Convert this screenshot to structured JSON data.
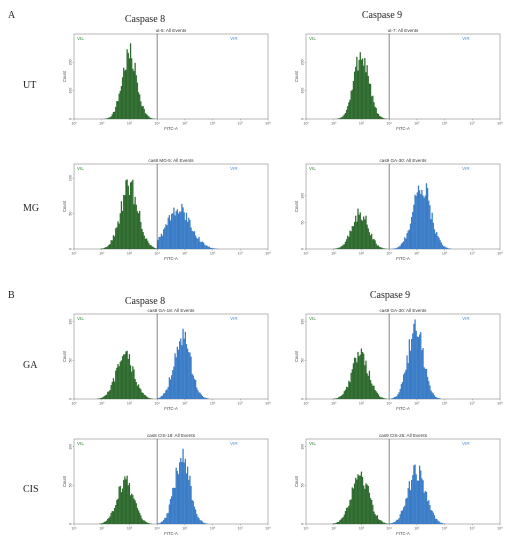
{
  "figure": {
    "sections": [
      {
        "letter": "A",
        "column_titles": [
          "Caspase 8",
          "Caspase 9"
        ],
        "rows": [
          "UT",
          "MG"
        ]
      },
      {
        "letter": "B",
        "column_titles": [
          "Caspase 8",
          "Caspase 9"
        ],
        "rows": [
          "GA",
          "CIS"
        ]
      }
    ]
  },
  "colors": {
    "green": "#2e6b2e",
    "blue": "#3a7cc7",
    "gate_label_green": "#2e8b2e",
    "gate_label_blue": "#4a90d9",
    "axis": "#555555"
  },
  "chart_data": [
    {
      "type": "area",
      "title": "ut-5: All Events",
      "xlabel": "FITC-A",
      "ylabel": "Count",
      "x_scale": "log",
      "xlim": [
        10,
        100000000
      ],
      "x_ticks": [
        "10¹",
        "10²",
        "10³",
        "10⁴",
        "10⁵",
        "10⁶",
        "10⁷",
        "10⁸"
      ],
      "ylim": [
        0,
        300
      ],
      "y_ticks": [
        0,
        100,
        200
      ],
      "gate_x": 10000,
      "gate_labels": [
        "VIL",
        "VIR"
      ],
      "series": [
        {
          "gate": "VIL",
          "peak_x": 1000,
          "peak_y": 225,
          "width": 0.27
        }
      ]
    },
    {
      "type": "area",
      "title": "ut-7: All Events",
      "xlabel": "FITC-A",
      "ylabel": "Count",
      "x_scale": "log",
      "xlim": [
        10,
        100000000
      ],
      "x_ticks": [
        "10¹",
        "10²",
        "10³",
        "10⁴",
        "10⁵",
        "10⁶",
        "10⁷",
        "10⁸"
      ],
      "ylim": [
        0,
        300
      ],
      "y_ticks": [
        0,
        100,
        200
      ],
      "gate_x": 10000,
      "gate_labels": [
        "VIL",
        "VIR"
      ],
      "series": [
        {
          "gate": "VIL",
          "peak_x": 1000,
          "peak_y": 230,
          "width": 0.27
        }
      ]
    },
    {
      "type": "area",
      "title": "cas8 MG-5: All Events",
      "xlabel": "FITC-A",
      "ylabel": "Count",
      "x_scale": "log",
      "xlim": [
        10,
        100000000
      ],
      "x_ticks": [
        "10¹",
        "10²",
        "10³",
        "10⁴",
        "10⁵",
        "10⁶",
        "10⁷",
        "10⁸"
      ],
      "ylim": [
        0,
        120
      ],
      "y_ticks": [
        0,
        50,
        100
      ],
      "gate_x": 10000,
      "gate_labels": [
        "VIL",
        "VIR"
      ],
      "series": [
        {
          "gate": "VIL",
          "peak_x": 1000,
          "peak_y": 88,
          "width": 0.32
        },
        {
          "gate": "VIR",
          "peak_x": 60000,
          "peak_y": 55,
          "width": 0.45
        }
      ]
    },
    {
      "type": "area",
      "title": "cas9 GA-30: All Events",
      "xlabel": "FITC-A",
      "ylabel": "Count",
      "x_scale": "log",
      "xlim": [
        10,
        100000000
      ],
      "x_ticks": [
        "10¹",
        "10²",
        "10³",
        "10⁴",
        "10⁵",
        "10⁶",
        "10⁷",
        "10⁸"
      ],
      "ylim": [
        0,
        160
      ],
      "y_ticks": [
        0,
        50,
        100
      ],
      "gate_x": 10000,
      "gate_labels": [
        "VIL",
        "VIR"
      ],
      "series": [
        {
          "gate": "VIL",
          "peak_x": 900,
          "peak_y": 68,
          "width": 0.3
        },
        {
          "gate": "VIR",
          "peak_x": 150000,
          "peak_y": 120,
          "width": 0.32
        }
      ]
    },
    {
      "type": "area",
      "title": "cas8 GA-18: All Events",
      "xlabel": "FITC-A",
      "ylabel": "Count",
      "x_scale": "log",
      "xlim": [
        10,
        100000000
      ],
      "x_ticks": [
        "10¹",
        "10²",
        "10³",
        "10⁴",
        "10⁵",
        "10⁶",
        "10⁷",
        "10⁸"
      ],
      "ylim": [
        0,
        110
      ],
      "y_ticks": [
        0,
        50,
        100
      ],
      "gate_x": 10000,
      "gate_labels": [
        "VIL",
        "VIR"
      ],
      "series": [
        {
          "gate": "VIL",
          "peak_x": 700,
          "peak_y": 55,
          "width": 0.32
        },
        {
          "gate": "VIR",
          "peak_x": 80000,
          "peak_y": 80,
          "width": 0.3
        }
      ]
    },
    {
      "type": "area",
      "title": "cas9 GA-30: All Events",
      "xlabel": "FITC-A",
      "ylabel": "Count",
      "x_scale": "log",
      "xlim": [
        10,
        100000000
      ],
      "x_ticks": [
        "10¹",
        "10²",
        "10³",
        "10⁴",
        "10⁵",
        "10⁶",
        "10⁷",
        "10⁸"
      ],
      "ylim": [
        0,
        110
      ],
      "y_ticks": [
        0,
        50,
        100
      ],
      "gate_x": 10000,
      "gate_labels": [
        "VIL",
        "VIR"
      ],
      "series": [
        {
          "gate": "VIL",
          "peak_x": 900,
          "peak_y": 58,
          "width": 0.3
        },
        {
          "gate": "VIR",
          "peak_x": 90000,
          "peak_y": 90,
          "width": 0.28
        }
      ]
    },
    {
      "type": "area",
      "title": "cas8 CIS-18: All Events",
      "xlabel": "FITC-A",
      "ylabel": "Count",
      "x_scale": "log",
      "xlim": [
        10,
        100000000
      ],
      "x_ticks": [
        "10¹",
        "10²",
        "10³",
        "10⁴",
        "10⁵",
        "10⁶",
        "10⁷",
        "10⁸"
      ],
      "ylim": [
        0,
        110
      ],
      "y_ticks": [
        0,
        50,
        100
      ],
      "gate_x": 10000,
      "gate_labels": [
        "VIL",
        "VIR"
      ],
      "series": [
        {
          "gate": "VIL",
          "peak_x": 700,
          "peak_y": 55,
          "width": 0.3
        },
        {
          "gate": "VIR",
          "peak_x": 80000,
          "peak_y": 85,
          "width": 0.28
        }
      ]
    },
    {
      "type": "area",
      "title": "cas9 CIS-25: All Events",
      "xlabel": "FITC-A",
      "ylabel": "Count",
      "x_scale": "log",
      "xlim": [
        10,
        100000000
      ],
      "x_ticks": [
        "10¹",
        "10²",
        "10³",
        "10⁴",
        "10⁵",
        "10⁶",
        "10⁷",
        "10⁸"
      ],
      "ylim": [
        0,
        110
      ],
      "y_ticks": [
        0,
        50,
        100
      ],
      "gate_x": 10000,
      "gate_labels": [
        "VIL",
        "VIR"
      ],
      "series": [
        {
          "gate": "VIL",
          "peak_x": 900,
          "peak_y": 65,
          "width": 0.32
        },
        {
          "gate": "VIR",
          "peak_x": 100000,
          "peak_y": 68,
          "width": 0.32
        }
      ]
    }
  ]
}
